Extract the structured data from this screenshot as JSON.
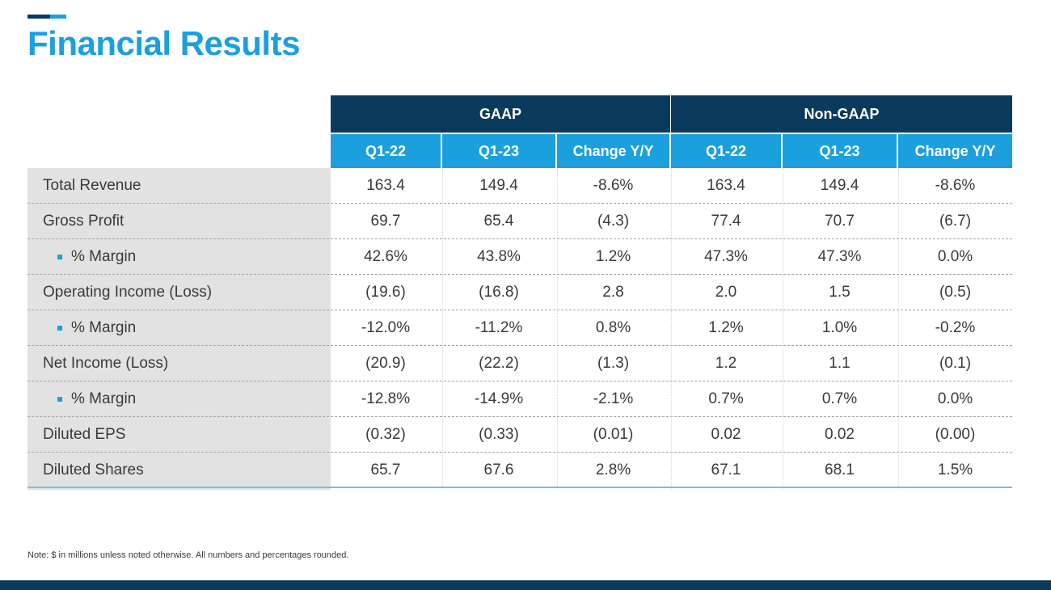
{
  "slide": {
    "title": "Financial Results",
    "note": "Note: $ in millions unless noted otherwise. All numbers and percentages rounded."
  },
  "colors": {
    "navy": "#0b3b5c",
    "accent": "#1ca0dd",
    "label_bg": "#e2e2e2"
  },
  "table": {
    "groups": [
      {
        "label": "GAAP",
        "columns": [
          "Q1-22",
          "Q1-23",
          "Change Y/Y"
        ]
      },
      {
        "label": "Non-GAAP",
        "columns": [
          "Q1-22",
          "Q1-23",
          "Change Y/Y"
        ]
      }
    ],
    "rows": [
      {
        "label": "Total Revenue",
        "indent": false,
        "values": [
          "163.4",
          "149.4",
          "-8.6%",
          "163.4",
          "149.4",
          "-8.6%"
        ]
      },
      {
        "label": "Gross Profit",
        "indent": false,
        "values": [
          "69.7",
          "65.4",
          "(4.3)",
          "77.4",
          "70.7",
          "(6.7)"
        ]
      },
      {
        "label": "% Margin",
        "indent": true,
        "values": [
          "42.6%",
          "43.8%",
          "1.2%",
          "47.3%",
          "47.3%",
          "0.0%"
        ]
      },
      {
        "label": "Operating Income (Loss)",
        "indent": false,
        "values": [
          "(19.6)",
          "(16.8)",
          "2.8",
          "2.0",
          "1.5",
          "(0.5)"
        ]
      },
      {
        "label": "% Margin",
        "indent": true,
        "values": [
          "-12.0%",
          "-11.2%",
          "0.8%",
          "1.2%",
          "1.0%",
          "-0.2%"
        ]
      },
      {
        "label": "Net Income (Loss)",
        "indent": false,
        "values": [
          "(20.9)",
          "(22.2)",
          "(1.3)",
          "1.2",
          "1.1",
          "(0.1)"
        ]
      },
      {
        "label": "% Margin",
        "indent": true,
        "values": [
          "-12.8%",
          "-14.9%",
          "-2.1%",
          "0.7%",
          "0.7%",
          "0.0%"
        ]
      },
      {
        "label": "Diluted EPS",
        "indent": false,
        "values": [
          "(0.32)",
          "(0.33)",
          "(0.01)",
          "0.02",
          "0.02",
          "(0.00)"
        ]
      },
      {
        "label": "Diluted Shares",
        "indent": false,
        "values": [
          "65.7",
          "67.6",
          "2.8%",
          "67.1",
          "68.1",
          "1.5%"
        ]
      }
    ]
  }
}
